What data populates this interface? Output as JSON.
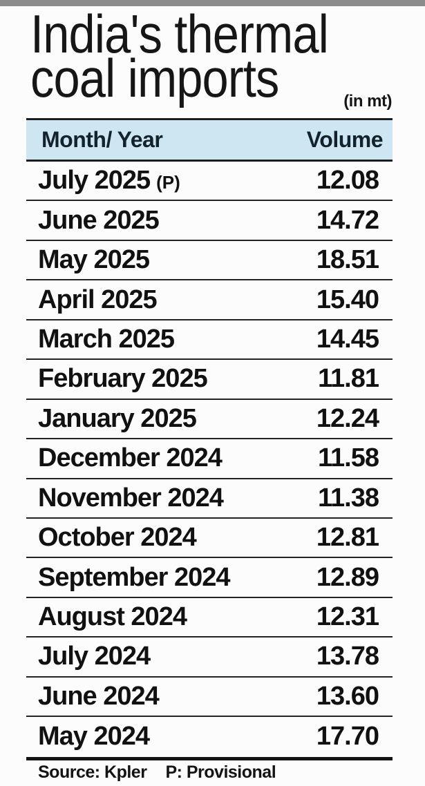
{
  "page": {
    "title": "India's thermal coal imports",
    "unit_label": "(in mt)"
  },
  "table": {
    "headers": {
      "month": "Month/ Year",
      "volume": "Volume"
    },
    "rows": [
      {
        "month": "July 2025",
        "note": "(P)",
        "volume": "12.08"
      },
      {
        "month": "June 2025",
        "volume": "14.72"
      },
      {
        "month": "May 2025",
        "volume": "18.51"
      },
      {
        "month": "April 2025",
        "volume": "15.40"
      },
      {
        "month": "March 2025",
        "volume": "14.45"
      },
      {
        "month": "February 2025",
        "volume": "11.81"
      },
      {
        "month": "January 2025",
        "volume": "12.24"
      },
      {
        "month": "December 2024",
        "volume": "11.58"
      },
      {
        "month": "November 2024",
        "volume": "11.38"
      },
      {
        "month": "October 2024",
        "volume": "12.81"
      },
      {
        "month": "September 2024",
        "volume": "12.89"
      },
      {
        "month": "August 2024",
        "volume": "12.31"
      },
      {
        "month": "July 2024",
        "volume": "13.78"
      },
      {
        "month": "June 2024",
        "volume": "13.60"
      },
      {
        "month": "May 2024",
        "volume": "17.70"
      }
    ]
  },
  "footer": {
    "source": "Source: Kpler",
    "provisional": "P: Provisional"
  },
  "colors": {
    "top_bar": "#8c8c8c",
    "header_band": "#cde6f2",
    "rule": "#1c1c1c",
    "text": "#161616",
    "background": "#fcfcfc"
  },
  "chart_data": {
    "type": "table",
    "title": "India's thermal coal imports",
    "unit": "in mt",
    "columns": [
      "Month/ Year",
      "Volume"
    ],
    "categories": [
      "July 2025 (P)",
      "June 2025",
      "May 2025",
      "April 2025",
      "March 2025",
      "February 2025",
      "January 2025",
      "December 2024",
      "November 2024",
      "October 2024",
      "September 2024",
      "August 2024",
      "July 2024",
      "June 2024",
      "May 2024"
    ],
    "values": [
      12.08,
      14.72,
      18.51,
      15.4,
      14.45,
      11.81,
      12.24,
      11.58,
      11.38,
      12.81,
      12.89,
      12.31,
      13.78,
      13.6,
      17.7
    ],
    "source": "Source: Kpler",
    "note": "P: Provisional"
  }
}
